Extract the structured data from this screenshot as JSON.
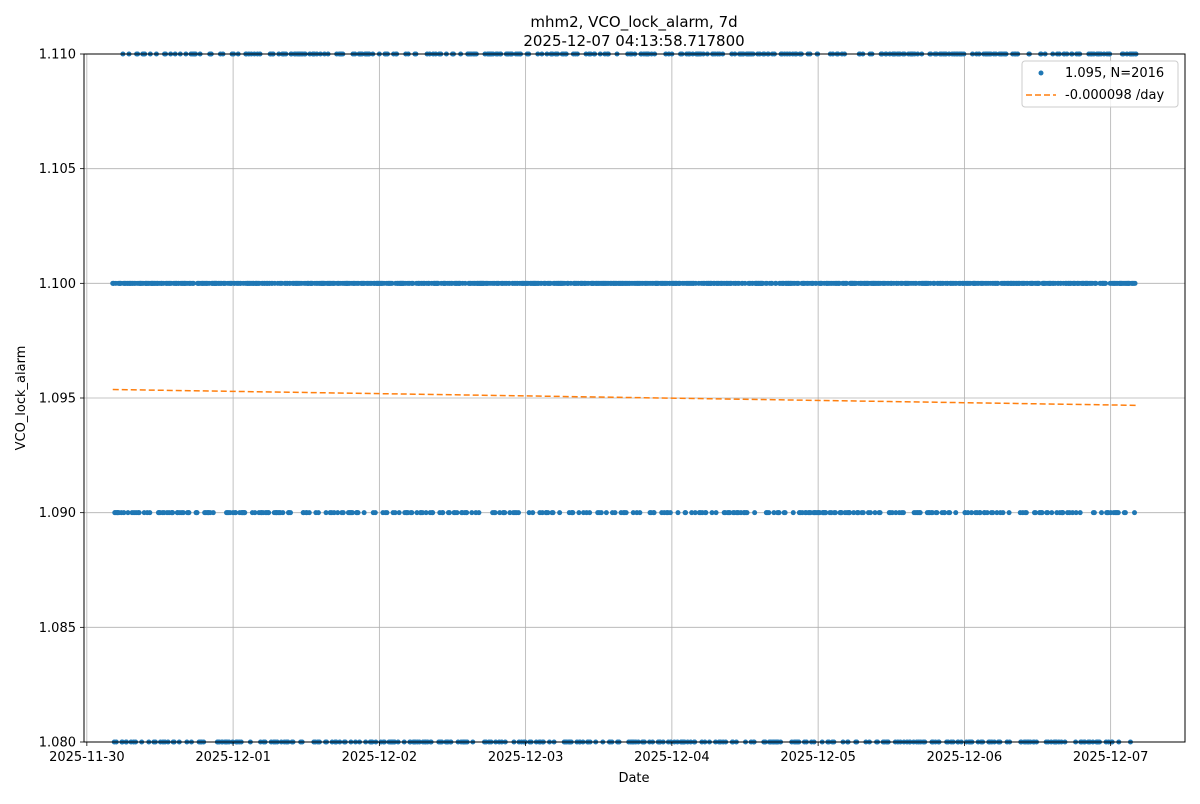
{
  "chart_data": {
    "type": "scatter",
    "title": "mhm2, VCO_lock_alarm, 7d",
    "subtitle": "2025-12-07 04:13:58.717800",
    "xlabel": "Date",
    "ylabel": "VCO_lock_alarm",
    "xlim": [
      "2025-11-29T23:32:00",
      "2025-12-07T12:12:00"
    ],
    "ylim": [
      1.08,
      1.11
    ],
    "x_ticks": [
      "2025-11-30",
      "2025-12-01",
      "2025-12-02",
      "2025-12-03",
      "2025-12-04",
      "2025-12-05",
      "2025-12-06",
      "2025-12-07"
    ],
    "y_ticks": [
      "1.080",
      "1.085",
      "1.090",
      "1.095",
      "1.100",
      "1.105",
      "1.110"
    ],
    "grid": true,
    "legend_position": "top-right",
    "x_start": "2025-11-30T04:15:00",
    "x_end": "2025-12-07T04:10:00",
    "sample_interval_minutes": 5,
    "series": [
      {
        "name": "1.095, N=2016",
        "kind": "scatter",
        "color": "#1f77b4",
        "levels": [
          {
            "y": 1.11,
            "fraction": 0.2
          },
          {
            "y": 1.1,
            "fraction": 0.6
          },
          {
            "y": 1.09,
            "fraction": 0.2
          },
          {
            "y": 1.08,
            "fraction": 0.2
          }
        ]
      },
      {
        "name": "-0.000098 /day",
        "kind": "line",
        "color": "#ff7f0e",
        "dash": true,
        "points": [
          {
            "x": "2025-11-30T04:15:00",
            "y": 1.09537
          },
          {
            "x": "2025-12-07T04:10:00",
            "y": 1.09468
          }
        ]
      }
    ]
  }
}
